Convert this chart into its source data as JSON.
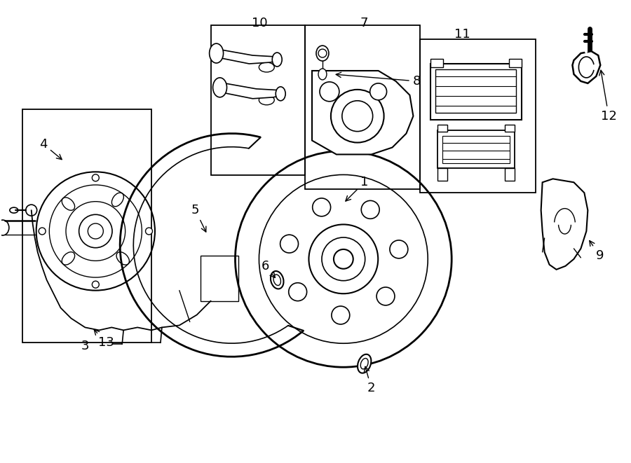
{
  "background_color": "#ffffff",
  "line_color": "#000000",
  "fig_width": 9.0,
  "fig_height": 6.61,
  "dpi": 100
}
